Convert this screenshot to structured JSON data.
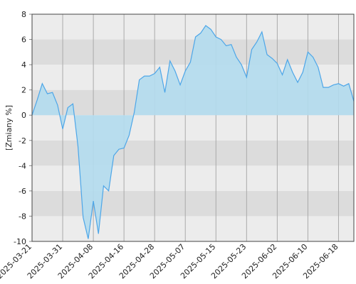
{
  "chart_data": {
    "type": "area",
    "y_label": "[Zmiany %]",
    "categories": [
      "2025-03-21",
      null,
      null,
      null,
      null,
      null,
      "2025-03-31",
      null,
      null,
      null,
      null,
      null,
      "2025-04-08",
      null,
      null,
      null,
      null,
      null,
      "2025-04-16",
      null,
      null,
      null,
      null,
      null,
      "2025-04-28",
      null,
      null,
      null,
      null,
      null,
      "2025-05-07",
      null,
      null,
      null,
      null,
      null,
      "2025-05-15",
      null,
      null,
      null,
      null,
      null,
      "2025-05-23",
      null,
      null,
      null,
      null,
      null,
      "2025-06-02",
      null,
      null,
      null,
      null,
      null,
      "2025-06-10",
      null,
      null,
      null,
      null,
      null,
      "2025-06-18",
      null,
      null,
      null
    ],
    "values": [
      0,
      1.2,
      2.5,
      1.7,
      1.8,
      0.8,
      -1.1,
      0.6,
      0.9,
      -2.5,
      -8.1,
      -9.8,
      -6.8,
      -9.4,
      -5.6,
      -6.0,
      -3.2,
      -2.7,
      -2.6,
      -1.6,
      0.2,
      2.8,
      3.1,
      3.1,
      3.3,
      3.8,
      1.8,
      4.3,
      3.5,
      2.4,
      3.5,
      4.2,
      6.2,
      6.5,
      7.1,
      6.8,
      6.2,
      6.0,
      5.5,
      5.6,
      4.6,
      4.0,
      3.0,
      5.2,
      5.8,
      6.6,
      4.8,
      4.5,
      4.1,
      3.2,
      4.4,
      3.4,
      2.6,
      3.4,
      5.0,
      4.6,
      3.8,
      2.2,
      2.2,
      2.4,
      2.5,
      2.3,
      2.5,
      1.1
    ],
    "color": "#4da6e8",
    "fill": "#b3dcee",
    "ylim": [
      -10,
      8
    ],
    "yticks": [
      -10,
      -8,
      -6,
      -4,
      -2,
      0,
      2,
      4,
      6,
      8
    ],
    "grid": true
  }
}
